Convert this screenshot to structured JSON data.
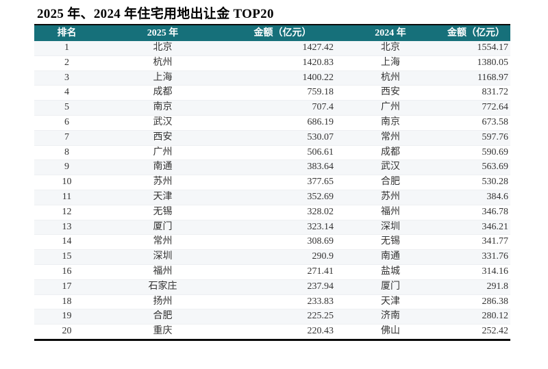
{
  "page": {
    "title": "2025 年、2024 年住宅用地出让金 TOP20"
  },
  "colors": {
    "header_bg": "#16707a",
    "header_text": "#ffffff",
    "row_alt_bg": "#f5f7f9",
    "table_border": "#0a0a0a"
  },
  "chart_data": {
    "type": "table",
    "title": "2025 年、2024 年住宅用地出让金 TOP20",
    "columns": [
      "排名",
      "2025 年",
      "金额（亿元）",
      "2024 年",
      "金额（亿元）"
    ],
    "rows": [
      [
        1,
        "北京",
        1427.42,
        "北京",
        1554.17
      ],
      [
        2,
        "杭州",
        1420.83,
        "上海",
        1380.05
      ],
      [
        3,
        "上海",
        1400.22,
        "杭州",
        1168.97
      ],
      [
        4,
        "成都",
        759.18,
        "西安",
        831.72
      ],
      [
        5,
        "南京",
        707.4,
        "广州",
        772.64
      ],
      [
        6,
        "武汉",
        686.19,
        "南京",
        673.58
      ],
      [
        7,
        "西安",
        530.07,
        "常州",
        597.76
      ],
      [
        8,
        "广州",
        506.61,
        "成都",
        590.69
      ],
      [
        9,
        "南通",
        383.64,
        "武汉",
        563.69
      ],
      [
        10,
        "苏州",
        377.65,
        "合肥",
        530.28
      ],
      [
        11,
        "天津",
        352.69,
        "苏州",
        384.6
      ],
      [
        12,
        "无锡",
        328.02,
        "福州",
        346.78
      ],
      [
        13,
        "厦门",
        323.14,
        "深圳",
        346.21
      ],
      [
        14,
        "常州",
        308.69,
        "无锡",
        341.77
      ],
      [
        15,
        "深圳",
        290.9,
        "南通",
        331.76
      ],
      [
        16,
        "福州",
        271.41,
        "盐城",
        314.16
      ],
      [
        17,
        "石家庄",
        237.94,
        "厦门",
        291.8
      ],
      [
        18,
        "扬州",
        233.83,
        "天津",
        286.38
      ],
      [
        19,
        "合肥",
        225.25,
        "济南",
        280.12
      ],
      [
        20,
        "重庆",
        220.43,
        "佛山",
        252.42
      ]
    ],
    "layout": {
      "legend": "none",
      "grid": "horizontal-row-stripes",
      "header_alignment": "center",
      "amount_alignment": "right"
    }
  }
}
